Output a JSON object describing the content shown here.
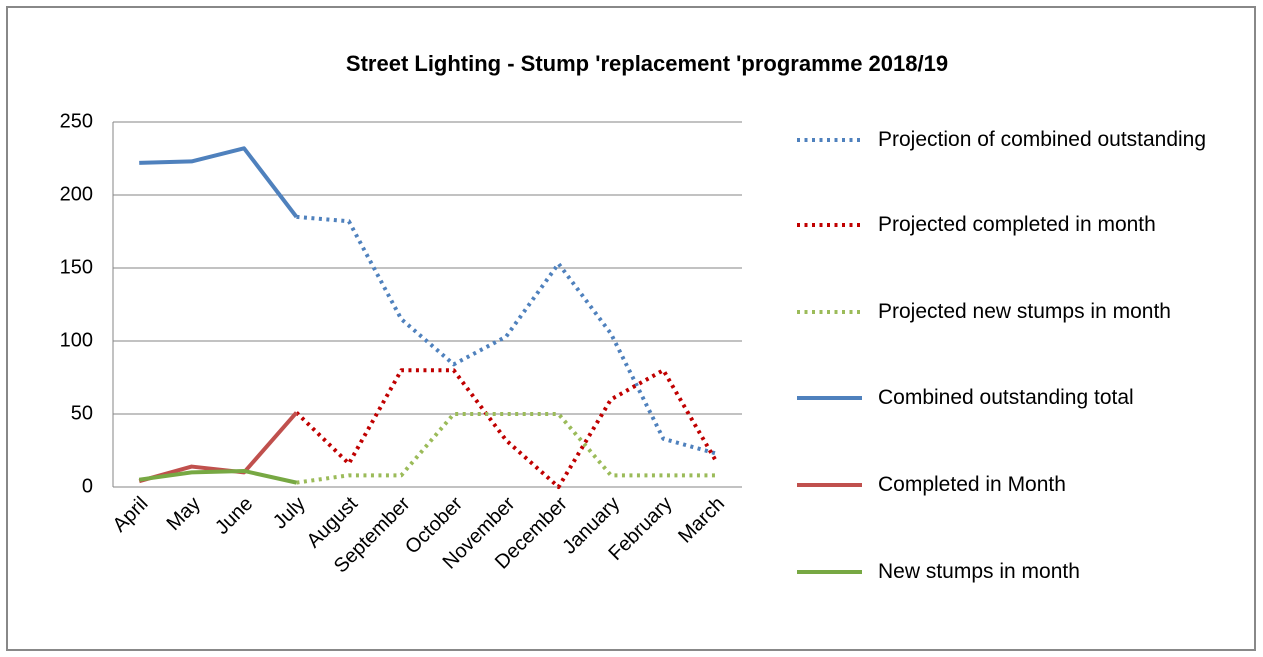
{
  "chart_data": {
    "type": "line",
    "title": "Street Lighting - Stump 'replacement 'programme 2018/19",
    "categories": [
      "April",
      "May",
      "June",
      "July",
      "August",
      "September",
      "October",
      "November",
      "December",
      "January",
      "February",
      "March"
    ],
    "series": [
      {
        "name": "Projection of combined outstanding",
        "color": "#4f81bd",
        "dash": "dotted",
        "values": [
          null,
          null,
          null,
          185,
          182,
          115,
          84,
          103,
          153,
          105,
          33,
          23
        ]
      },
      {
        "name": "Projected completed in month",
        "color": "#c00000",
        "dash": "dotted",
        "values": [
          null,
          null,
          null,
          51,
          16,
          80,
          80,
          32,
          0,
          60,
          80,
          18
        ]
      },
      {
        "name": "Projected new stumps in month",
        "color": "#9bbb59",
        "dash": "dotted",
        "values": [
          null,
          null,
          null,
          3,
          8,
          8,
          50,
          50,
          50,
          8,
          8,
          8
        ]
      },
      {
        "name": "Combined outstanding total",
        "color": "#4f81bd",
        "dash": "solid",
        "values": [
          222,
          223,
          232,
          185,
          null,
          null,
          null,
          null,
          null,
          null,
          null,
          null
        ]
      },
      {
        "name": "Completed in Month",
        "color": "#c0504d",
        "dash": "solid",
        "values": [
          4,
          14,
          10,
          51,
          null,
          null,
          null,
          null,
          null,
          null,
          null,
          null
        ]
      },
      {
        "name": "New stumps in month",
        "color": "#77a843",
        "dash": "solid",
        "values": [
          5,
          10,
          11,
          3,
          null,
          null,
          null,
          null,
          null,
          null,
          null,
          null
        ]
      }
    ],
    "ylim": [
      0,
      250
    ],
    "yticks": [
      0,
      50,
      100,
      150,
      200,
      250
    ],
    "grid": true,
    "legend": "right"
  }
}
